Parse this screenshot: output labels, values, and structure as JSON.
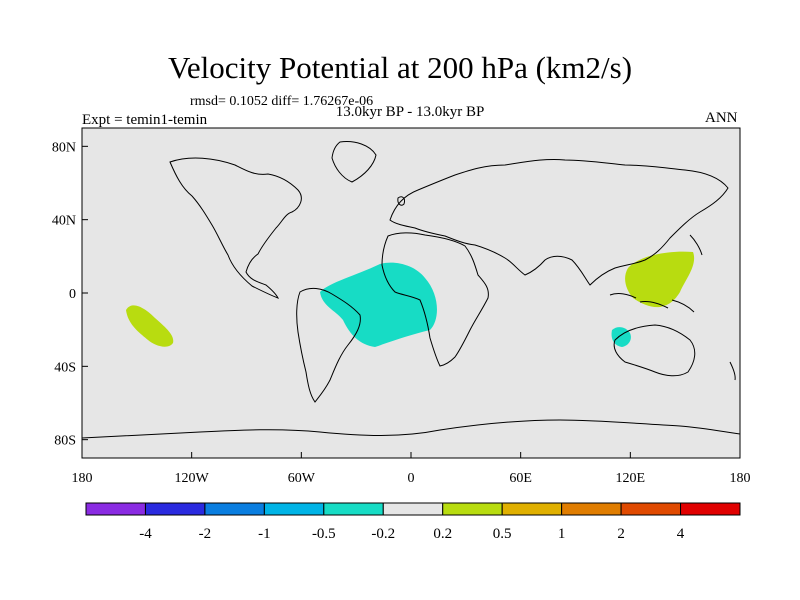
{
  "title": "Velocity Potential at 200 hPa (km2/s)",
  "stats_line": "rmsd= 0.1052 diff= 1.76267e-06",
  "subtitle": "13.0kyr BP - 13.0kyr BP",
  "experiment_label": "Expt = temin1-temin",
  "season_label": "ANN",
  "map": {
    "land_ocean_fill": "#e6e6e6",
    "coast_color": "#000000",
    "lon_tick_labels": [
      "180",
      "120W",
      "60W",
      "0",
      "60E",
      "120E",
      "180"
    ],
    "lat_tick_labels": [
      "80N",
      "40N",
      "0",
      "40S",
      "80S"
    ]
  },
  "colorbar": {
    "colors": [
      "#8a2be2",
      "#2a2adf",
      "#0a7ee0",
      "#00b4e6",
      "#17dcc5",
      "#e6e6e6",
      "#b8dc10",
      "#e0b000",
      "#e07d00",
      "#e04a00",
      "#e00000"
    ],
    "labels": [
      "-4",
      "-2",
      "-1",
      "-0.5",
      "-0.2",
      "0.2",
      "0.5",
      "1",
      "2",
      "4"
    ]
  },
  "anomalies": [
    {
      "name": "tropical-atlantic-negative",
      "color": "#17dcc5"
    },
    {
      "name": "west-pacific-positive",
      "color": "#b8dc10"
    },
    {
      "name": "south-pacific-positive",
      "color": "#b8dc10"
    },
    {
      "name": "indian-ocean-negative",
      "color": "#17dcc5"
    }
  ]
}
